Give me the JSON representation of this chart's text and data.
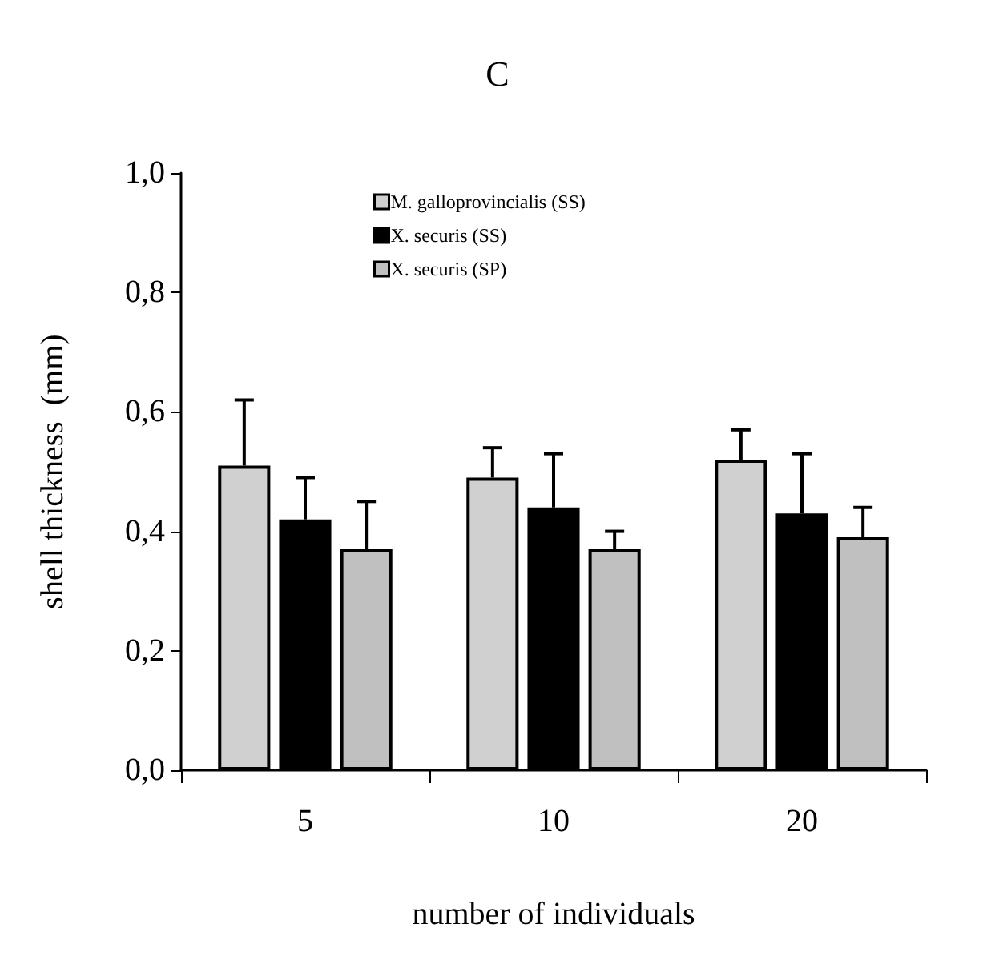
{
  "chart_data": {
    "type": "bar",
    "title": "C",
    "xlabel": "number of individuals",
    "ylabel": "shell thickness  (mm)",
    "categories": [
      "5",
      "10",
      "20"
    ],
    "series": [
      {
        "name": "M. galloprovincialis (SS)",
        "color": "#d0d0d0",
        "values": [
          0.51,
          0.49,
          0.52
        ],
        "errors": [
          [
            0.51,
            0.62
          ],
          [
            0.49,
            0.54
          ],
          [
            0.52,
            0.57
          ]
        ]
      },
      {
        "name": "X. securis (SS)",
        "color": "#000000",
        "values": [
          0.42,
          0.44,
          0.43
        ],
        "errors": [
          [
            0.42,
            0.49
          ],
          [
            0.44,
            0.53
          ],
          [
            0.43,
            0.53
          ]
        ]
      },
      {
        "name": "X. securis (SP)",
        "color": "#c0c0c0",
        "values": [
          0.37,
          0.37,
          0.39
        ],
        "errors": [
          [
            0.37,
            0.45
          ],
          [
            0.37,
            0.4
          ],
          [
            0.39,
            0.44
          ]
        ]
      }
    ],
    "ylim": [
      0,
      1
    ],
    "yticks": [
      {
        "value": 0,
        "label": "0,0"
      },
      {
        "value": 0.2,
        "label": "0,2"
      },
      {
        "value": 0.4,
        "label": "0,4"
      },
      {
        "value": 0.6,
        "label": "0,6"
      },
      {
        "value": 0.8,
        "label": "0,8"
      },
      {
        "value": 1,
        "label": "1,0"
      }
    ],
    "legend": "top",
    "grid": false
  }
}
